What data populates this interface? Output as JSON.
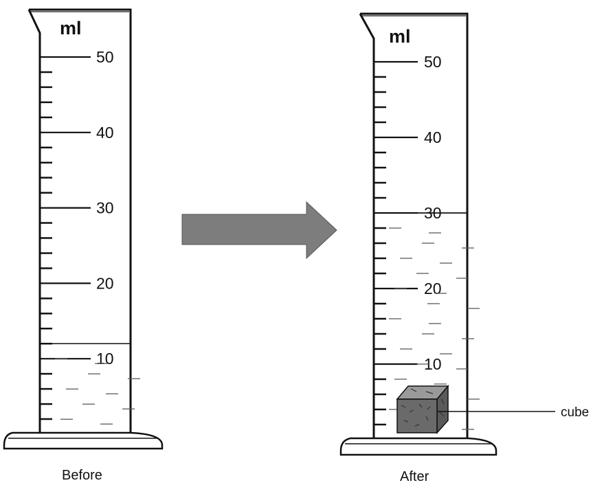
{
  "before": {
    "unit": "ml",
    "tick_labels": [
      "50",
      "40",
      "30",
      "20",
      "10"
    ],
    "liquid_level_ml": 12,
    "caption": "Before"
  },
  "after": {
    "unit": "ml",
    "tick_labels": [
      "50",
      "40",
      "30",
      "20",
      "10"
    ],
    "liquid_level_ml": 30,
    "caption": "After",
    "object_label": "cube"
  },
  "scale": {
    "min_ml": 0,
    "max_ml": 50,
    "major_step_ml": 10,
    "minor_step_ml": 2
  },
  "colors": {
    "ink": "#111111",
    "arrow": "#7d7d7d",
    "cube": "#6a6a6a"
  }
}
